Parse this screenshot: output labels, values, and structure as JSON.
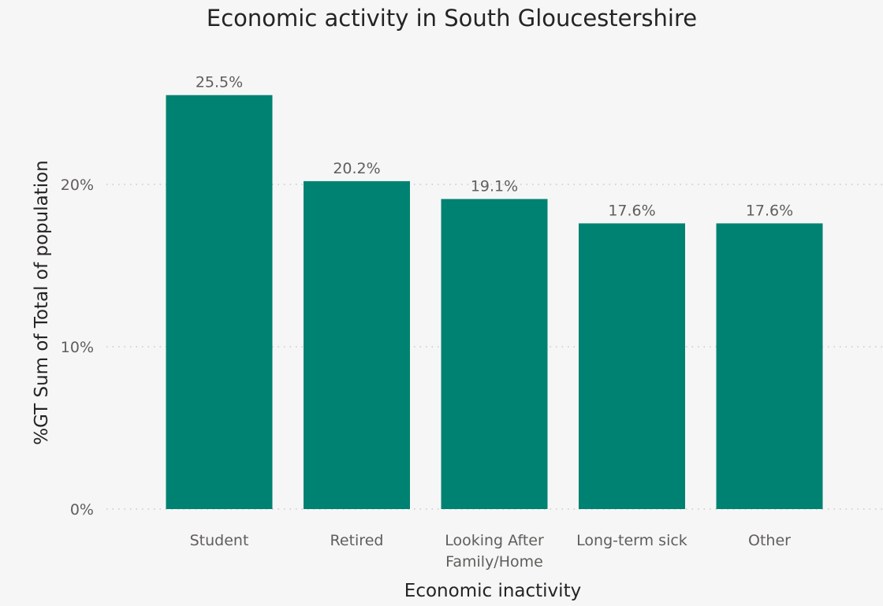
{
  "chart_data": {
    "type": "bar",
    "title": "Economic activity in South Gloucestershire",
    "xlabel": "Economic inactivity",
    "ylabel": "%GT Sum of Total of population",
    "categories": [
      [
        "Student"
      ],
      [
        "Retired"
      ],
      [
        "Looking After",
        "Family/Home"
      ],
      [
        "Long-term sick"
      ],
      [
        "Other"
      ]
    ],
    "values": [
      25.5,
      20.2,
      19.1,
      17.6,
      17.6
    ],
    "data_labels": [
      "25.5%",
      "20.2%",
      "19.1%",
      "17.6%",
      "17.6%"
    ],
    "yticks": [
      {
        "value": 0,
        "label": "0%"
      },
      {
        "value": 10,
        "label": "10%"
      },
      {
        "value": 20,
        "label": "20%"
      }
    ],
    "ylim": [
      0,
      27
    ],
    "grid": true,
    "bar_color": "#008272"
  }
}
